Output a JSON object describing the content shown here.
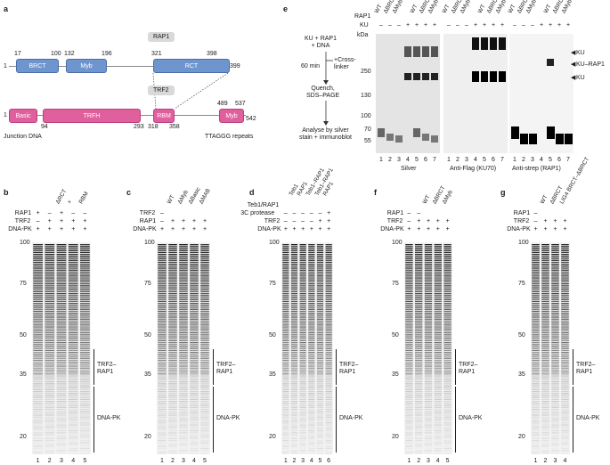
{
  "panel_a": {
    "letter": "a",
    "rap1_name": "RAP1",
    "trf2_name": "TRF2",
    "rap1_domains": [
      {
        "label": "BRCT",
        "start": "17",
        "end": "100"
      },
      {
        "label": "Myb",
        "start": "132",
        "end": "196"
      },
      {
        "label": "RCT",
        "start": "321",
        "end": "398"
      }
    ],
    "rap1_first": "1",
    "rap1_last": "399",
    "trf2_domains": [
      {
        "label": "Basic"
      },
      {
        "label": "TRFH"
      },
      {
        "label": "RBM"
      },
      {
        "label": "Myb"
      }
    ],
    "trf2_numbers": [
      "1",
      "94",
      "293",
      "318",
      "358",
      "489",
      "537",
      "542"
    ],
    "junction_label": "Junction DNA",
    "ttaggg_label": "TTAGGG repeats"
  },
  "panel_e": {
    "letter": "e",
    "flow": [
      "KU + RAP1\n+ DNA",
      "60 min",
      "+Cross-\nlinker",
      "Quench,\nSDS–PAGE",
      "Analyse by silver\nstain + immunoblot"
    ],
    "row_labels": [
      "RAP1",
      "KU",
      "kDa"
    ],
    "col_headers": [
      "WT",
      "ΔBRCT",
      "ΔMyb",
      "WT",
      "ΔBRCT",
      "ΔMyb"
    ],
    "ku_signs": [
      "–",
      "–",
      "–",
      "+",
      "+",
      "+",
      "+"
    ],
    "kda_marks": [
      "250",
      "130",
      "100",
      "70",
      "55"
    ],
    "blot_titles": [
      "Silver",
      "Anti-Flag (KU70)",
      "Anti-strep (RAP1)"
    ],
    "lane_numbers": [
      "1",
      "2",
      "3",
      "4",
      "5",
      "6",
      "7"
    ],
    "arrow_labels": [
      "KU",
      "KU–RAP1",
      "KU"
    ]
  },
  "gels": [
    {
      "letter": "b",
      "rows": [
        "RAP1",
        "TRF2",
        "DNA-PK"
      ],
      "headers": [
        "ΔRCT",
        "×",
        "RBM"
      ],
      "signs": [
        [
          "+",
          "–",
          "+",
          "–",
          "–"
        ],
        [
          "–",
          "+",
          "+",
          "+",
          "+"
        ],
        [
          "+",
          "+",
          "+",
          "+",
          "+"
        ]
      ],
      "lanes": [
        "1",
        "2",
        "3",
        "4",
        "5"
      ],
      "markers": [
        "100",
        "75",
        "50",
        "35",
        "20"
      ],
      "band_labels": [
        "TRF2–\nRAP1",
        "DNA-PK"
      ]
    },
    {
      "letter": "c",
      "rows": [
        "TRF2",
        "RAP1",
        "DNA-PK"
      ],
      "headers": [
        "WT",
        "ΔMyb",
        "ΔBasic",
        "ΔMAB"
      ],
      "signs": [
        [
          "–",
          "",
          "",
          "",
          ""
        ],
        [
          "–",
          "+",
          "+",
          "+",
          "+"
        ],
        [
          "+",
          "+",
          "+",
          "+",
          "+"
        ]
      ],
      "lanes": [
        "1",
        "2",
        "3",
        "4",
        "5"
      ],
      "markers": [
        "100",
        "75",
        "50",
        "35",
        "20"
      ],
      "band_labels": [
        "TRF2–\nRAP1",
        "DNA-PK"
      ]
    },
    {
      "letter": "d",
      "rows": [
        "Teb1/RAP1",
        "3C protease",
        "TRF2",
        "DNA-PK"
      ],
      "headers": [
        "Teb1",
        "RAP1",
        "Teb1–RAP1",
        "Teb1–RAP1",
        "RAP1"
      ],
      "signs": [
        [
          "",
          "",
          "",
          "",
          "",
          ""
        ],
        [
          "–",
          "–",
          "–",
          "–",
          "–",
          "+"
        ],
        [
          "–",
          "–",
          "–",
          "–",
          "+",
          "+"
        ],
        [
          "+",
          "+",
          "+",
          "+",
          "+",
          "+"
        ]
      ],
      "lanes": [
        "1",
        "2",
        "3",
        "4",
        "5",
        "6"
      ],
      "markers": [
        "100",
        "75",
        "50",
        "35",
        "20"
      ],
      "band_labels": [
        "TRF2–\nRAP1",
        "DNA-PK"
      ]
    },
    {
      "letter": "f",
      "rows": [
        "RAP1",
        "TRF2",
        "DNA-PK"
      ],
      "headers": [
        "WT",
        "ΔBRCT",
        "ΔMyb"
      ],
      "signs": [
        [
          "–",
          "–",
          "",
          "",
          ""
        ],
        [
          "–",
          "+",
          "+",
          "+",
          "+"
        ],
        [
          "+",
          "+",
          "+",
          "+",
          "+"
        ]
      ],
      "lanes": [
        "1",
        "2",
        "3",
        "4",
        "5"
      ],
      "markers": [
        "100",
        "75",
        "50",
        "35",
        "20"
      ],
      "band_labels": [
        "TRF2–\nRAP1",
        "DNA-PK"
      ]
    },
    {
      "letter": "g",
      "rows": [
        "RAP1",
        "TRF2",
        "DNA-PK"
      ],
      "headers": [
        "WT",
        "ΔBRCT",
        "LIG4 BRCT–ΔBRCT"
      ],
      "signs": [
        [
          "–",
          "",
          "",
          ""
        ],
        [
          "–",
          "+",
          "+",
          "+"
        ],
        [
          "+",
          "+",
          "+",
          "+"
        ]
      ],
      "lanes": [
        "1",
        "2",
        "3",
        "4"
      ],
      "markers": [
        "100",
        "75",
        "50",
        "35",
        "20"
      ],
      "band_labels": [
        "TRF2–\nRAP1",
        "DNA-PK"
      ]
    }
  ]
}
